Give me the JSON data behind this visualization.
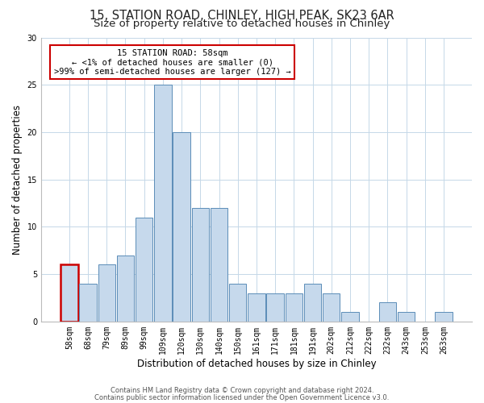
{
  "title": "15, STATION ROAD, CHINLEY, HIGH PEAK, SK23 6AR",
  "subtitle": "Size of property relative to detached houses in Chinley",
  "xlabel": "Distribution of detached houses by size in Chinley",
  "ylabel": "Number of detached properties",
  "bar_labels": [
    "58sqm",
    "68sqm",
    "79sqm",
    "89sqm",
    "99sqm",
    "109sqm",
    "120sqm",
    "130sqm",
    "140sqm",
    "150sqm",
    "161sqm",
    "171sqm",
    "181sqm",
    "191sqm",
    "202sqm",
    "212sqm",
    "222sqm",
    "232sqm",
    "243sqm",
    "253sqm",
    "263sqm"
  ],
  "bar_values": [
    6,
    4,
    6,
    7,
    11,
    25,
    20,
    12,
    12,
    4,
    3,
    3,
    3,
    4,
    3,
    1,
    0,
    2,
    1,
    0,
    1
  ],
  "bar_color": "#c6d9ec",
  "bar_edge_color": "#5b8db8",
  "highlight_index": 0,
  "highlight_edge_color": "#cc0000",
  "ylim": [
    0,
    30
  ],
  "yticks": [
    0,
    5,
    10,
    15,
    20,
    25,
    30
  ],
  "annotation_line1": "15 STATION ROAD: 58sqm",
  "annotation_line2": "← <1% of detached houses are smaller (0)",
  "annotation_line3": ">99% of semi-detached houses are larger (127) →",
  "footer_line1": "Contains HM Land Registry data © Crown copyright and database right 2024.",
  "footer_line2": "Contains public sector information licensed under the Open Government Licence v3.0.",
  "bg_color": "#ffffff",
  "grid_color": "#c5d8e8",
  "title_fontsize": 10.5,
  "subtitle_fontsize": 9.5,
  "tick_fontsize": 7,
  "ylabel_fontsize": 8.5,
  "xlabel_fontsize": 8.5,
  "footer_fontsize": 6,
  "annot_fontsize": 7.5
}
